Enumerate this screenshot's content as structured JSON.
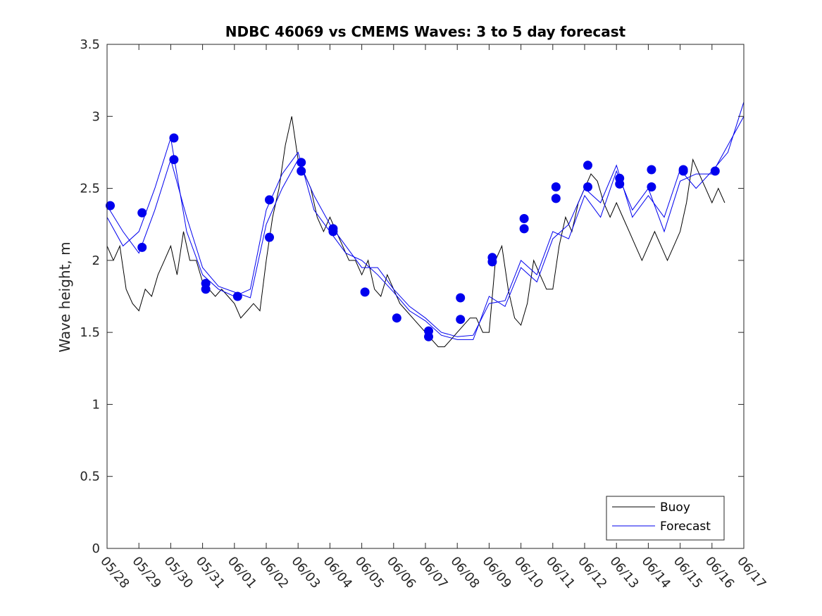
{
  "chart_data": {
    "type": "line",
    "title": "NDBC 46069 vs CMEMS Waves: 3 to 5 day forecast",
    "ylabel": "Wave height, m",
    "xlabel": "",
    "ylim": [
      0,
      3.5
    ],
    "yticks": [
      0,
      0.5,
      1,
      1.5,
      2,
      2.5,
      3,
      3.5
    ],
    "ytick_labels": [
      "0",
      "0.5",
      "1",
      "1.5",
      "2",
      "2.5",
      "3",
      "3.5"
    ],
    "xtick_labels": [
      "05/28",
      "05/29",
      "05/30",
      "05/31",
      "06/01",
      "06/02",
      "06/03",
      "06/04",
      "06/05",
      "06/06",
      "06/07",
      "06/08",
      "06/09",
      "06/10",
      "06/11",
      "06/12",
      "06/13",
      "06/14",
      "06/15",
      "06/16",
      "06/17"
    ],
    "xlim_days": [
      0,
      20
    ],
    "grid": false,
    "legend": {
      "placement": "bottom-right",
      "entries": [
        "Buoy",
        "Forecast"
      ]
    },
    "colors": {
      "buoy": "#000000",
      "forecast": "#0000ee"
    },
    "series": [
      {
        "name": "Buoy",
        "color": "#000000",
        "x": [
          0,
          0.2,
          0.4,
          0.6,
          0.8,
          1.0,
          1.2,
          1.4,
          1.6,
          1.8,
          2.0,
          2.2,
          2.4,
          2.6,
          2.8,
          3.0,
          3.2,
          3.4,
          3.6,
          3.8,
          4.0,
          4.2,
          4.4,
          4.6,
          4.8,
          5.0,
          5.2,
          5.4,
          5.6,
          5.8,
          6.0,
          6.2,
          6.4,
          6.6,
          6.8,
          7.0,
          7.2,
          7.4,
          7.6,
          7.8,
          8.0,
          8.2,
          8.4,
          8.6,
          8.8,
          9.0,
          9.2,
          9.4,
          9.6,
          9.8,
          10.0,
          10.2,
          10.4,
          10.6,
          10.8,
          11.0,
          11.2,
          11.4,
          11.6,
          11.8,
          12.0,
          12.2,
          12.4,
          12.6,
          12.8,
          13.0,
          13.2,
          13.4,
          13.6,
          13.8,
          14.0,
          14.2,
          14.4,
          14.6,
          14.8,
          15.0,
          15.2,
          15.4,
          15.6,
          15.8,
          16.0,
          16.2,
          16.4,
          16.6,
          16.8,
          17.0,
          17.2,
          17.4,
          17.6,
          17.8,
          18.0,
          18.2,
          18.4,
          18.6,
          18.8,
          19.0,
          19.2,
          19.4
        ],
        "values": [
          2.1,
          2.0,
          2.1,
          1.8,
          1.7,
          1.65,
          1.8,
          1.75,
          1.9,
          2.0,
          2.1,
          1.9,
          2.2,
          2.0,
          2.0,
          1.85,
          1.8,
          1.75,
          1.8,
          1.75,
          1.7,
          1.6,
          1.65,
          1.7,
          1.65,
          2.0,
          2.3,
          2.5,
          2.8,
          3.0,
          2.7,
          2.6,
          2.5,
          2.3,
          2.2,
          2.3,
          2.2,
          2.1,
          2.0,
          2.0,
          1.9,
          2.0,
          1.8,
          1.75,
          1.9,
          1.8,
          1.7,
          1.65,
          1.6,
          1.55,
          1.5,
          1.45,
          1.4,
          1.4,
          1.45,
          1.5,
          1.55,
          1.6,
          1.6,
          1.5,
          1.5,
          2.0,
          2.1,
          1.8,
          1.6,
          1.55,
          1.7,
          2.0,
          1.9,
          1.8,
          1.8,
          2.1,
          2.3,
          2.2,
          2.4,
          2.5,
          2.6,
          2.55,
          2.4,
          2.3,
          2.4,
          2.3,
          2.2,
          2.1,
          2.0,
          2.1,
          2.2,
          2.1,
          2.0,
          2.1,
          2.2,
          2.4,
          2.7,
          2.6,
          2.5,
          2.4,
          2.5,
          2.4
        ]
      },
      {
        "name": "Forecast",
        "color": "#0000ee",
        "x": [
          0,
          0.5,
          1.0,
          1.5,
          2.0,
          2.5,
          3.0,
          3.5,
          4.0,
          4.5,
          5.0,
          5.5,
          6.0,
          6.5,
          7.0,
          7.5,
          8.0,
          8.5,
          9.0,
          9.5,
          10.0,
          10.5,
          11.0,
          11.5,
          12.0,
          12.5,
          13.0,
          13.5,
          14.0,
          14.5,
          15.0,
          15.5,
          16.0,
          16.5,
          17.0,
          17.5,
          18.0,
          18.5,
          19.0,
          19.5,
          20.0
        ],
        "values": [
          2.38,
          2.2,
          2.05,
          2.35,
          2.7,
          2.3,
          1.95,
          1.82,
          1.78,
          1.74,
          2.25,
          2.5,
          2.7,
          2.45,
          2.25,
          2.1,
          1.95,
          1.95,
          1.8,
          1.68,
          1.6,
          1.5,
          1.47,
          1.48,
          1.7,
          1.72,
          2.0,
          1.9,
          2.2,
          2.15,
          2.45,
          2.3,
          2.62,
          2.35,
          2.5,
          2.2,
          2.55,
          2.6,
          2.6,
          2.8,
          3.0
        ]
      },
      {
        "name": "Forecast",
        "color": "#0000ee",
        "x": [
          0,
          0.5,
          1.0,
          1.5,
          2.0,
          2.5,
          3.0,
          3.5,
          4.0,
          4.5,
          5.0,
          5.5,
          6.0,
          6.5,
          7.0,
          7.5,
          8.0,
          8.5,
          9.0,
          9.5,
          10.0,
          10.5,
          11.0,
          11.5,
          12.0,
          12.5,
          13.0,
          13.5,
          14.0,
          14.5,
          15.0,
          15.5,
          16.0,
          16.5,
          17.0,
          17.5,
          18.0,
          18.5,
          19.0,
          19.5,
          20.0
        ],
        "values": [
          2.3,
          2.1,
          2.2,
          2.5,
          2.85,
          2.2,
          1.9,
          1.8,
          1.75,
          1.8,
          2.35,
          2.6,
          2.75,
          2.35,
          2.2,
          2.05,
          2.0,
          1.9,
          1.78,
          1.65,
          1.58,
          1.48,
          1.45,
          1.45,
          1.75,
          1.68,
          1.95,
          1.85,
          2.15,
          2.25,
          2.5,
          2.4,
          2.66,
          2.3,
          2.45,
          2.3,
          2.63,
          2.5,
          2.62,
          2.75,
          3.1
        ]
      }
    ],
    "markers": {
      "name": "Forecast",
      "color": "#0000ee",
      "x": [
        0.1,
        1.1,
        1.1,
        2.1,
        2.1,
        3.1,
        3.1,
        4.1,
        5.1,
        5.1,
        6.1,
        6.1,
        7.1,
        7.1,
        8.1,
        9.1,
        10.1,
        10.1,
        11.1,
        11.1,
        12.1,
        12.1,
        13.1,
        13.1,
        14.1,
        14.1,
        15.1,
        15.1,
        16.1,
        16.1,
        17.1,
        17.1,
        18.1,
        18.1,
        19.1
      ],
      "values": [
        2.38,
        2.33,
        2.09,
        2.85,
        2.7,
        1.84,
        1.8,
        1.75,
        2.42,
        2.16,
        2.68,
        2.62,
        2.22,
        2.2,
        1.78,
        1.6,
        1.51,
        1.47,
        1.74,
        1.59,
        2.02,
        1.99,
        2.29,
        2.22,
        2.51,
        2.43,
        2.66,
        2.51,
        2.57,
        2.53,
        2.63,
        2.51,
        2.63,
        2.62,
        2.62
      ]
    }
  }
}
